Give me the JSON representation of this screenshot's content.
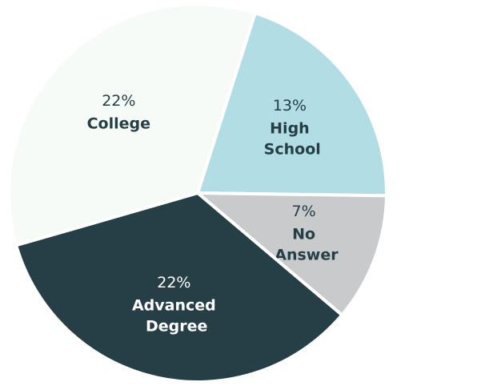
{
  "chart_data": {
    "type": "pie",
    "categories": [
      "High School",
      "No Answer",
      "Advanced Degree",
      "College"
    ],
    "values": [
      13,
      7,
      22,
      22
    ],
    "value_labels": [
      "13%",
      "7%",
      "22%",
      "22%"
    ],
    "colors": [
      "#b3dde5",
      "#c9cacc",
      "#263e45",
      "#f6fbf8"
    ],
    "label_colors": [
      "#263e45",
      "#263e45",
      "#ffffff",
      "#263e45"
    ]
  }
}
